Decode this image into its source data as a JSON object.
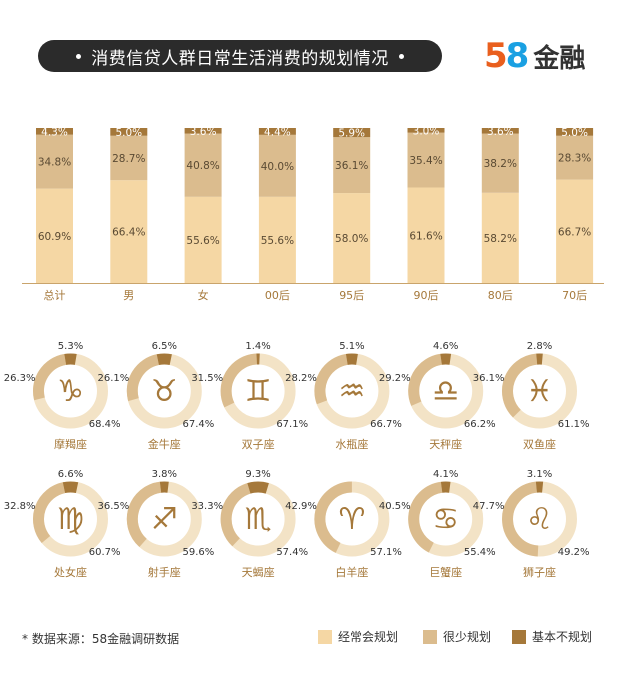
{
  "title": "消费信贷人群日常生活消费的规划情况",
  "logo": {
    "digit1": "5",
    "digit2": "8",
    "text": "金融"
  },
  "source": "* 数据来源：58金融调研数据",
  "colors": {
    "regular": "#f5d7a4",
    "rarely": "#dbbc8e",
    "none": "#a5783a",
    "ring_bg": "#f3e3c6"
  },
  "legend": [
    "经常会规划",
    "很少规划",
    "基本不规划"
  ],
  "chart_data": [
    {
      "type": "bar",
      "stacked": true,
      "categories": [
        "总计",
        "男",
        "女",
        "00后",
        "95后",
        "90后",
        "80后",
        "70后"
      ],
      "series": [
        {
          "name": "经常会规划",
          "values": [
            60.9,
            66.4,
            55.6,
            55.6,
            58.0,
            61.6,
            58.2,
            66.7
          ],
          "labels": [
            "60.9%",
            "66.4%",
            "55.6%",
            "55.6%",
            "58.0%",
            "61.6%",
            "58.2%",
            "66.7%"
          ]
        },
        {
          "name": "很少规划",
          "values": [
            34.8,
            28.7,
            40.8,
            40.0,
            36.1,
            35.4,
            38.2,
            28.3
          ],
          "labels": [
            "34.8%",
            "28.7%",
            "40.8%",
            "40.0%",
            "36.1%",
            "35.4%",
            "38.2%",
            "28.3%"
          ]
        },
        {
          "name": "基本不规划",
          "values": [
            4.3,
            5.0,
            3.6,
            4.4,
            5.9,
            3.0,
            3.6,
            5.0
          ],
          "labels": [
            "4.3%",
            "5.0%",
            "3.6%",
            "4.4%",
            "5.9%",
            "3.0%",
            "3.6%",
            "5.0%"
          ]
        }
      ],
      "ylim": [
        0,
        100
      ]
    },
    {
      "type": "pie",
      "donut": true,
      "items": [
        {
          "name": "摩羯座",
          "icon": "♑",
          "regular": 68.4,
          "rarely": 26.3,
          "none": 5.3,
          "labels": [
            "68.4%",
            "26.3%",
            "5.3%"
          ]
        },
        {
          "name": "金牛座",
          "icon": "♉",
          "regular": 67.4,
          "rarely": 26.1,
          "none": 6.5,
          "labels": [
            "67.4%",
            "26.1%",
            "6.5%"
          ]
        },
        {
          "name": "双子座",
          "icon": "♊",
          "regular": 67.1,
          "rarely": 31.5,
          "none": 1.4,
          "labels": [
            "67.1%",
            "31.5%",
            "1.4%"
          ]
        },
        {
          "name": "水瓶座",
          "icon": "♒",
          "regular": 66.7,
          "rarely": 28.2,
          "none": 5.1,
          "labels": [
            "66.7%",
            "28.2%",
            "5.1%"
          ]
        },
        {
          "name": "天秤座",
          "icon": "♎",
          "regular": 66.2,
          "rarely": 29.2,
          "none": 4.6,
          "labels": [
            "66.2%",
            "29.2%",
            "4.6%"
          ]
        },
        {
          "name": "双鱼座",
          "icon": "♓",
          "regular": 61.1,
          "rarely": 36.1,
          "none": 2.8,
          "labels": [
            "61.1%",
            "36.1%",
            "2.8%"
          ]
        },
        {
          "name": "处女座",
          "icon": "♍",
          "regular": 60.7,
          "rarely": 32.8,
          "none": 6.6,
          "labels": [
            "60.7%",
            "32.8%",
            "6.6%"
          ]
        },
        {
          "name": "射手座",
          "icon": "♐",
          "regular": 59.6,
          "rarely": 36.5,
          "none": 3.8,
          "labels": [
            "59.6%",
            "36.5%",
            "3.8%"
          ]
        },
        {
          "name": "天蝎座",
          "icon": "♏",
          "regular": 57.4,
          "rarely": 33.3,
          "none": 9.3,
          "labels": [
            "57.4%",
            "33.3%",
            "9.3%"
          ]
        },
        {
          "name": "白羊座",
          "icon": "♈",
          "regular": 57.1,
          "rarely": 42.9,
          "none": 0,
          "labels": [
            "57.1%",
            "42.9%",
            ""
          ]
        },
        {
          "name": "巨蟹座",
          "icon": "♋",
          "regular": 55.4,
          "rarely": 40.5,
          "none": 4.1,
          "labels": [
            "55.4%",
            "40.5%",
            "4.1%"
          ]
        },
        {
          "name": "狮子座",
          "icon": "♌",
          "regular": 49.2,
          "rarely": 47.7,
          "none": 3.1,
          "labels": [
            "49.2%",
            "47.7%",
            "3.1%"
          ]
        }
      ]
    }
  ]
}
